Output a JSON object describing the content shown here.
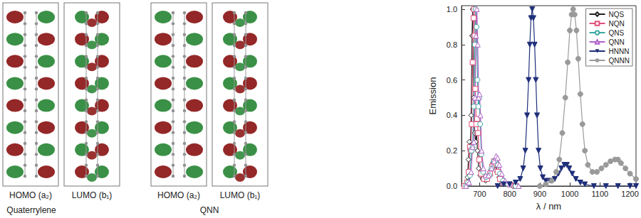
{
  "orbital_panels": [
    {
      "molecule": "Quaterrylene",
      "orbitals": [
        "HOMO (a₂)",
        "LUMO (b₁)"
      ]
    },
    {
      "molecule": "QNN",
      "orbitals": [
        "HOMO (a₂)",
        "LUMO (b₁)"
      ]
    }
  ],
  "chart_data": {
    "type": "line",
    "x_label": "λ / nm",
    "y_label": "Emission",
    "xlim": [
      640,
      1220
    ],
    "xticks": [
      700,
      800,
      900,
      1000,
      1100,
      1200
    ],
    "ylim": [
      0,
      1.02
    ],
    "yticks": [
      {
        "value": 0,
        "label": "0.0"
      },
      0.2,
      0.4,
      0.6,
      0.8,
      {
        "value": 1,
        "label": "1.0"
      }
    ],
    "legend": "upper right",
    "series": [
      {
        "name": "NQS",
        "color": "#222222",
        "marker": "diamond-open",
        "x": [
          650,
          655,
          660,
          663,
          666,
          669,
          672,
          675,
          677,
          679,
          681,
          684,
          687,
          690,
          693,
          697,
          702,
          710,
          720,
          730,
          738,
          744,
          748,
          752,
          758,
          765,
          775,
          790,
          810
        ],
        "values": [
          0,
          0.01,
          0.05,
          0.15,
          0.25,
          0.2,
          0.4,
          0.85,
          1.0,
          0.85,
          0.5,
          0.3,
          0.25,
          0.3,
          0.2,
          0.1,
          0.06,
          0.04,
          0.03,
          0.05,
          0.09,
          0.13,
          0.14,
          0.12,
          0.08,
          0.05,
          0.02,
          0.01,
          0
        ]
      },
      {
        "name": "NQN",
        "color": "#e0507a",
        "marker": "square-open",
        "x": [
          650,
          658,
          664,
          668,
          671,
          674,
          677,
          680,
          682,
          684,
          686,
          689,
          692,
          695,
          699,
          705,
          715,
          725,
          735,
          742,
          748,
          753,
          760,
          768,
          780,
          800,
          820
        ],
        "values": [
          0,
          0.02,
          0.08,
          0.22,
          0.2,
          0.35,
          0.7,
          0.95,
          1.0,
          0.85,
          0.55,
          0.35,
          0.38,
          0.3,
          0.15,
          0.07,
          0.04,
          0.04,
          0.07,
          0.11,
          0.14,
          0.13,
          0.08,
          0.04,
          0.02,
          0.01,
          0
        ]
      },
      {
        "name": "QNS",
        "color": "#3aa6a0",
        "marker": "circle-open",
        "x": [
          655,
          662,
          668,
          673,
          677,
          681,
          684,
          687,
          690,
          693,
          696,
          699,
          702,
          706,
          712,
          722,
          732,
          740,
          748,
          754,
          760,
          768,
          778,
          795,
          820
        ],
        "values": [
          0,
          0.02,
          0.06,
          0.2,
          0.22,
          0.45,
          0.8,
          1.0,
          0.9,
          0.6,
          0.45,
          0.5,
          0.35,
          0.18,
          0.08,
          0.05,
          0.06,
          0.1,
          0.14,
          0.15,
          0.12,
          0.07,
          0.03,
          0.01,
          0
        ]
      },
      {
        "name": "QNN",
        "color": "#b062c8",
        "marker": "triangle-open",
        "x": [
          655,
          665,
          672,
          677,
          681,
          685,
          688,
          691,
          694,
          697,
          700,
          703,
          707,
          713,
          720,
          730,
          740,
          748,
          755,
          760,
          766,
          774,
          785,
          800,
          830
        ],
        "values": [
          0,
          0.02,
          0.08,
          0.22,
          0.25,
          0.5,
          0.85,
          1.0,
          0.8,
          0.5,
          0.52,
          0.4,
          0.2,
          0.1,
          0.06,
          0.06,
          0.1,
          0.14,
          0.17,
          0.16,
          0.12,
          0.07,
          0.03,
          0.01,
          0
        ]
      },
      {
        "name": "HNNN",
        "color": "#1f2f7a",
        "marker": "triangle-down",
        "x": [
          760,
          780,
          800,
          820,
          835,
          845,
          852,
          858,
          863,
          867,
          871,
          875,
          879,
          883,
          887,
          891,
          896,
          902,
          910,
          920,
          935,
          950,
          962,
          972,
          982,
          990,
          998,
          1008,
          1020,
          1035,
          1050,
          1080,
          1120,
          1160,
          1200,
          1220
        ],
        "values": [
          0,
          0.01,
          0.01,
          0.02,
          0.04,
          0.1,
          0.2,
          0.4,
          0.6,
          0.8,
          0.95,
          1.0,
          0.95,
          0.8,
          0.6,
          0.4,
          0.2,
          0.1,
          0.05,
          0.03,
          0.03,
          0.04,
          0.07,
          0.1,
          0.12,
          0.12,
          0.1,
          0.07,
          0.04,
          0.02,
          0.01,
          0,
          0,
          0,
          0,
          0
        ]
      },
      {
        "name": "QNNN",
        "color": "#9a9a9a",
        "marker": "circle",
        "x": [
          900,
          920,
          940,
          955,
          965,
          975,
          985,
          993,
          1000,
          1006,
          1011,
          1016,
          1022,
          1028,
          1035,
          1042,
          1050,
          1060,
          1075,
          1090,
          1105,
          1120,
          1135,
          1150,
          1160,
          1170,
          1185,
          1200,
          1220
        ],
        "values": [
          0,
          0.01,
          0.03,
          0.08,
          0.15,
          0.3,
          0.5,
          0.7,
          0.88,
          0.97,
          1.0,
          0.97,
          0.88,
          0.72,
          0.52,
          0.35,
          0.2,
          0.12,
          0.08,
          0.08,
          0.1,
          0.12,
          0.14,
          0.15,
          0.15,
          0.13,
          0.1,
          0.07,
          0.04
        ]
      }
    ]
  }
}
